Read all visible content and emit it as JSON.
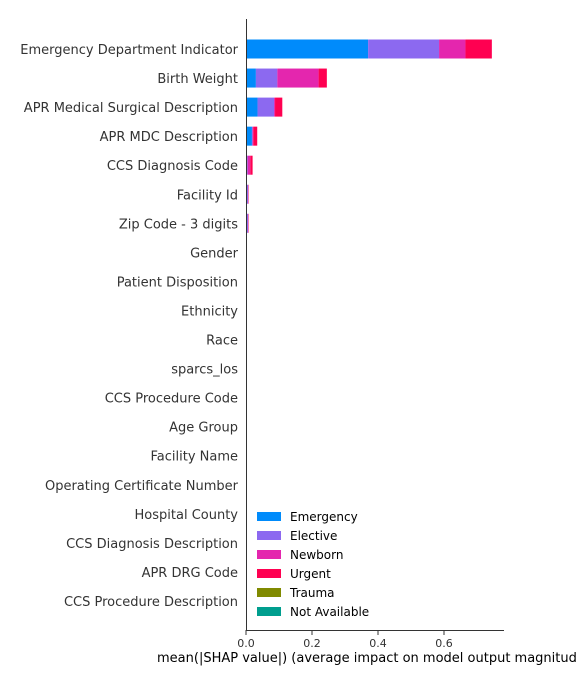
{
  "chart_data": {
    "type": "bar",
    "orientation": "horizontal",
    "stacked": true,
    "title": "",
    "xlabel": "mean(|SHAP value|) (average impact on model output magnitude)",
    "ylabel": "",
    "xlim": [
      0,
      0.78
    ],
    "xticks": [
      0.0,
      0.2,
      0.4,
      0.6
    ],
    "grid": false,
    "legend_position": "lower-right",
    "categories": [
      "Emergency Department Indicator",
      "Birth Weight",
      "APR Medical Surgical Description",
      "APR MDC Description",
      "CCS Diagnosis Code",
      "Facility Id",
      "Zip Code - 3 digits",
      "Gender",
      "Patient Disposition",
      "Ethnicity",
      "Race",
      "sparcs_los",
      "CCS Procedure Code",
      "Age Group",
      "Facility Name",
      "Operating Certificate Number",
      "Hospital County",
      "CCS Diagnosis Description",
      "APR DRG Code",
      "CCS Procedure Description"
    ],
    "series": [
      {
        "name": "Emergency",
        "color": "#008bfb",
        "values": [
          0.37,
          0.03,
          0.035,
          0.018,
          0.003,
          0.003,
          0.003,
          0,
          0,
          0,
          0,
          0,
          0,
          0,
          0,
          0,
          0,
          0,
          0,
          0
        ]
      },
      {
        "name": "Elective",
        "color": "#8c69f0",
        "values": [
          0.215,
          0.065,
          0.05,
          0.002,
          0.002,
          0.003,
          0.003,
          0,
          0,
          0,
          0,
          0,
          0,
          0,
          0,
          0,
          0,
          0,
          0,
          0
        ]
      },
      {
        "name": "Newborn",
        "color": "#e426ae",
        "values": [
          0.08,
          0.125,
          0.003,
          0.002,
          0.008,
          0.001,
          0.001,
          0,
          0,
          0,
          0,
          0,
          0,
          0,
          0,
          0,
          0,
          0,
          0,
          0
        ]
      },
      {
        "name": "Urgent",
        "color": "#ff0051",
        "values": [
          0.08,
          0.025,
          0.022,
          0.012,
          0.007,
          0.001,
          0.001,
          0,
          0,
          0,
          0,
          0,
          0,
          0,
          0,
          0,
          0,
          0,
          0,
          0
        ]
      },
      {
        "name": "Trauma",
        "color": "#808a00",
        "values": [
          0,
          0,
          0,
          0,
          0,
          0,
          0,
          0,
          0,
          0,
          0,
          0,
          0,
          0,
          0,
          0,
          0,
          0,
          0,
          0
        ]
      },
      {
        "name": "Not Available",
        "color": "#009e8e",
        "values": [
          0,
          0,
          0,
          0,
          0,
          0,
          0,
          0,
          0,
          0,
          0,
          0,
          0,
          0,
          0,
          0,
          0,
          0,
          0,
          0
        ]
      }
    ]
  }
}
